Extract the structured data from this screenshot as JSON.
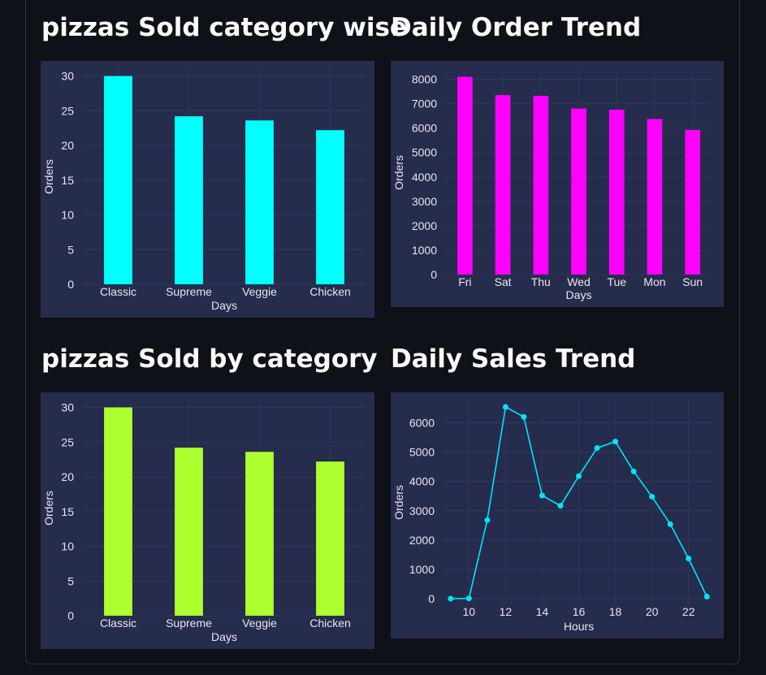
{
  "charts": [
    {
      "id": "c1",
      "heading": "pizzas Sold category wise",
      "chart_data": {
        "type": "bar",
        "categories": [
          "Classic",
          "Supreme",
          "Veggie",
          "Chicken"
        ],
        "values": [
          30.0,
          24.2,
          23.6,
          22.2
        ],
        "xlabel": "Days",
        "ylabel": "Orders",
        "ylim": [
          0,
          31
        ],
        "yticks": [
          0,
          5,
          10,
          15,
          20,
          25,
          30
        ],
        "grid": true,
        "color": "#00ffff"
      }
    },
    {
      "id": "c2",
      "heading": "Daily Order Trend",
      "chart_data": {
        "type": "bar",
        "categories": [
          "Fri",
          "Sat",
          "Thu",
          "Wed",
          "Tue",
          "Mon",
          "Sun"
        ],
        "values": [
          8100,
          7350,
          7320,
          6800,
          6750,
          6370,
          5920
        ],
        "xlabel": "Days",
        "ylabel": "Orders",
        "ylim": [
          0,
          8350
        ],
        "yticks": [
          0,
          1000,
          2000,
          3000,
          4000,
          5000,
          6000,
          7000,
          8000
        ],
        "grid": true,
        "color": "#ff00ff"
      }
    },
    {
      "id": "c3",
      "heading": "pizzas Sold by category",
      "chart_data": {
        "type": "bar",
        "categories": [
          "Classic",
          "Supreme",
          "Veggie",
          "Chicken"
        ],
        "values": [
          30.0,
          24.2,
          23.6,
          22.2
        ],
        "xlabel": "Days",
        "ylabel": "Orders",
        "ylim": [
          0,
          31
        ],
        "yticks": [
          0,
          5,
          10,
          15,
          20,
          25,
          30
        ],
        "grid": true,
        "color": "#adff2f"
      }
    },
    {
      "id": "c4",
      "heading": "Daily Sales Trend",
      "chart_data": {
        "type": "line",
        "x": [
          9,
          10,
          11,
          12,
          13,
          14,
          15,
          16,
          17,
          18,
          19,
          20,
          21,
          22,
          23
        ],
        "values": [
          0,
          10,
          2680,
          6540,
          6200,
          3520,
          3170,
          4180,
          5140,
          5360,
          4340,
          3480,
          2540,
          1370,
          70
        ],
        "xlabel": "Hours",
        "ylabel": "Orders",
        "xlim": [
          8.7,
          23.3
        ],
        "ylim": [
          -220,
          6790
        ],
        "xticks": [
          10,
          12,
          14,
          16,
          18,
          20,
          22
        ],
        "yticks": [
          0,
          1000,
          2000,
          3000,
          4000,
          5000,
          6000
        ],
        "grid": true,
        "markers": true,
        "color": "#00e5ff"
      }
    }
  ]
}
